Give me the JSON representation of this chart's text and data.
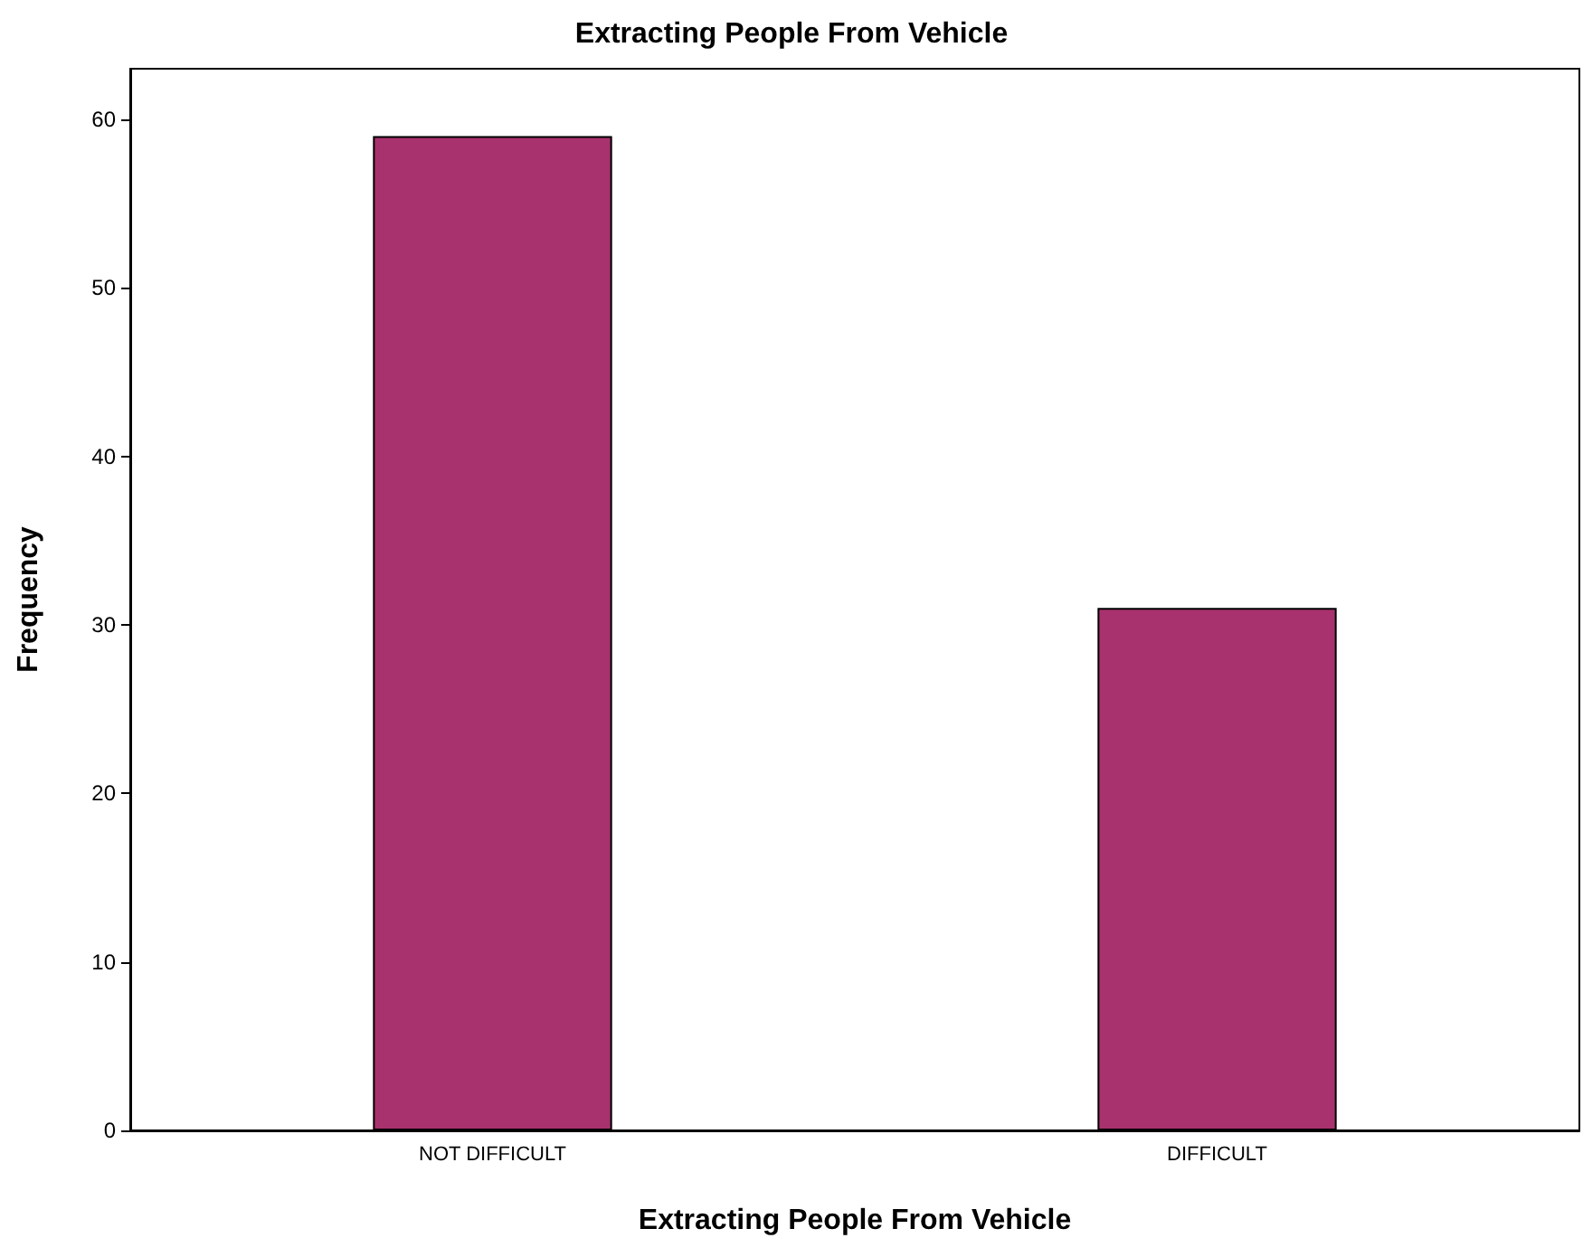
{
  "chart_data": {
    "type": "bar",
    "title": "Extracting People From Vehicle",
    "xlabel": "Extracting People From Vehicle",
    "ylabel": "Frequency",
    "categories": [
      "NOT DIFFICULT",
      "DIFFICULT"
    ],
    "values": [
      59,
      31
    ],
    "color": "#a8326e",
    "ylim": [
      0,
      63
    ],
    "yticks": [
      0,
      10,
      20,
      30,
      40,
      50,
      60
    ],
    "grid": false
  }
}
